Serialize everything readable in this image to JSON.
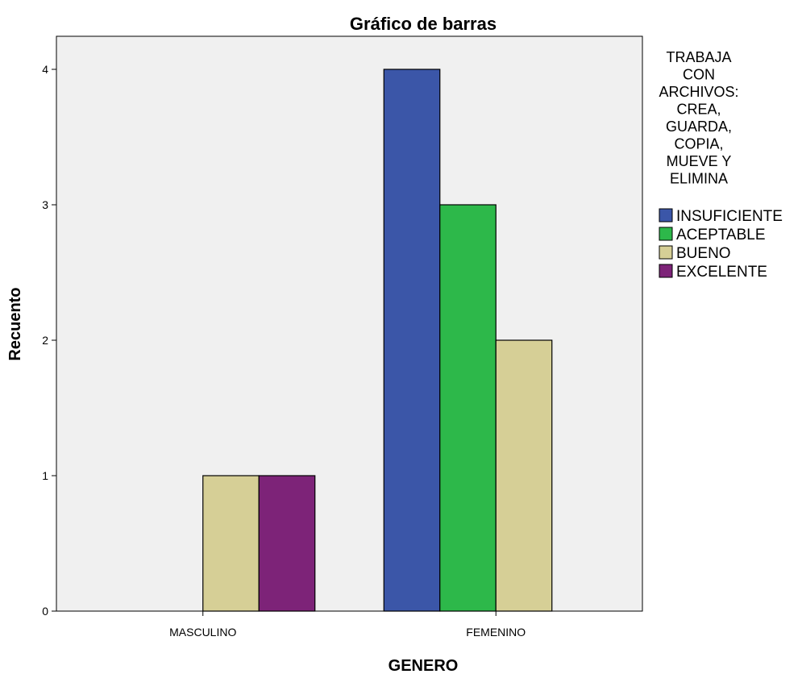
{
  "chart_data": {
    "type": "bar",
    "title": "Gráfico de barras",
    "xlabel": "GENERO",
    "ylabel": "Recuento",
    "categories": [
      "MASCULINO",
      "FEMENINO"
    ],
    "ylim": [
      0,
      4
    ],
    "yticks": [
      "0",
      "1",
      "2",
      "3",
      "4"
    ],
    "grid": false,
    "legend_placement": "right",
    "legend_title_lines": [
      "TRABAJA",
      "CON",
      "ARCHIVOS:",
      "CREA,",
      "GUARDA,",
      "COPIA,",
      "MUEVE Y",
      "ELIMINA"
    ],
    "series": [
      {
        "name": "INSUFICIENTE",
        "color": "#3b56a8",
        "values": [
          0,
          4
        ]
      },
      {
        "name": "ACEPTABLE",
        "color": "#2db84a",
        "values": [
          0,
          3
        ]
      },
      {
        "name": "BUENO",
        "color": "#d6cf96",
        "values": [
          1,
          2
        ]
      },
      {
        "name": "EXCELENTE",
        "color": "#7d2378",
        "values": [
          1,
          0
        ]
      }
    ],
    "plot_background": "#f0f0f0"
  }
}
